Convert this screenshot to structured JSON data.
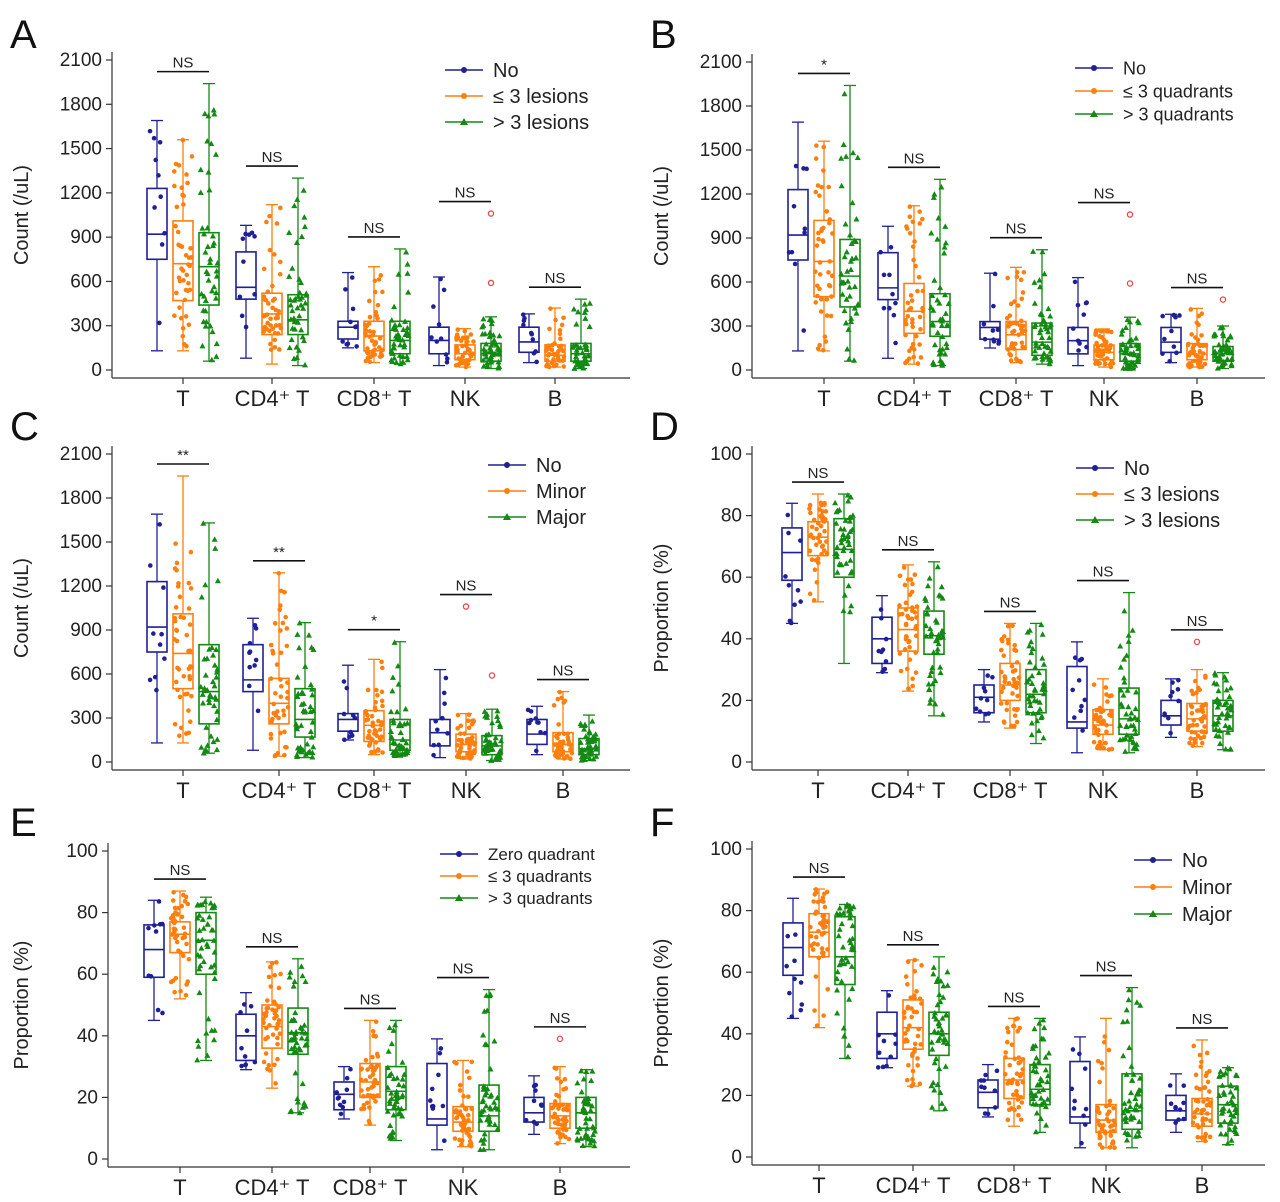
{
  "colors": {
    "no": "#1f1f96",
    "mid": "#ff7f0e",
    "high": "#138a13",
    "outlier": "#e8474f"
  },
  "chart_data": [
    {
      "panel": "A",
      "type": "box",
      "ylabel": "Count (/uL)",
      "ylim": [
        0,
        2100
      ],
      "yticks": [
        0,
        300,
        600,
        900,
        1200,
        1500,
        1800,
        2100
      ],
      "categories": [
        "T",
        "CD4⁺ T",
        "CD8⁺ T",
        "NK",
        "B"
      ],
      "legend": [
        "No",
        "≤ 3 lesions",
        "> 3 lesions"
      ],
      "significance": [
        "NS",
        "NS",
        "NS",
        "NS",
        "NS"
      ],
      "series": [
        {
          "name": "No",
          "boxes": [
            {
              "min": 130,
              "q1": 750,
              "median": 920,
              "q3": 1230,
              "max": 1690
            },
            {
              "min": 80,
              "q1": 480,
              "median": 560,
              "q3": 800,
              "max": 980
            },
            {
              "min": 150,
              "q1": 210,
              "median": 290,
              "q3": 330,
              "max": 660
            },
            {
              "min": 30,
              "q1": 110,
              "median": 200,
              "q3": 290,
              "max": 630
            },
            {
              "min": 50,
              "q1": 120,
              "median": 190,
              "q3": 290,
              "max": 380
            }
          ]
        },
        {
          "name": "≤ 3 lesions",
          "boxes": [
            {
              "min": 130,
              "q1": 470,
              "median": 720,
              "q3": 1010,
              "max": 1560
            },
            {
              "min": 40,
              "q1": 240,
              "median": 380,
              "q3": 520,
              "max": 1120
            },
            {
              "min": 50,
              "q1": 130,
              "median": 230,
              "q3": 330,
              "max": 700
            },
            {
              "min": 20,
              "q1": 70,
              "median": 110,
              "q3": 170,
              "max": 280
            },
            {
              "min": 20,
              "q1": 60,
              "median": 100,
              "q3": 170,
              "max": 420
            }
          ]
        },
        {
          "name": "> 3 lesions",
          "boxes": [
            {
              "min": 60,
              "q1": 440,
              "median": 700,
              "q3": 930,
              "max": 1940
            },
            {
              "min": 30,
              "q1": 240,
              "median": 340,
              "q3": 510,
              "max": 1300
            },
            {
              "min": 40,
              "q1": 110,
              "median": 200,
              "q3": 330,
              "max": 820
            },
            {
              "min": 10,
              "q1": 60,
              "median": 110,
              "q3": 180,
              "max": 360,
              "outliers": [
                590,
                1060
              ]
            },
            {
              "min": 10,
              "q1": 60,
              "median": 110,
              "q3": 180,
              "max": 480
            }
          ]
        }
      ]
    },
    {
      "panel": "B",
      "type": "box",
      "ylabel": "Count (/uL)",
      "ylim": [
        0,
        2100
      ],
      "yticks": [
        0,
        300,
        600,
        900,
        1200,
        1500,
        1800,
        2100
      ],
      "categories": [
        "T",
        "CD4⁺ T",
        "CD8⁺ T",
        "NK",
        "B"
      ],
      "legend": [
        "No",
        "≤ 3 quadrants",
        "> 3 quadrants"
      ],
      "significance": [
        "*",
        "NS",
        "NS",
        "NS",
        "NS"
      ],
      "series": [
        {
          "name": "No",
          "boxes": [
            {
              "min": 130,
              "q1": 750,
              "median": 920,
              "q3": 1230,
              "max": 1690
            },
            {
              "min": 80,
              "q1": 480,
              "median": 560,
              "q3": 800,
              "max": 980
            },
            {
              "min": 150,
              "q1": 210,
              "median": 290,
              "q3": 330,
              "max": 660
            },
            {
              "min": 30,
              "q1": 110,
              "median": 200,
              "q3": 290,
              "max": 630
            },
            {
              "min": 50,
              "q1": 120,
              "median": 190,
              "q3": 290,
              "max": 380
            }
          ]
        },
        {
          "name": "≤ 3 quadrants",
          "boxes": [
            {
              "min": 130,
              "q1": 500,
              "median": 740,
              "q3": 1020,
              "max": 1560
            },
            {
              "min": 40,
              "q1": 250,
              "median": 400,
              "q3": 590,
              "max": 1120
            },
            {
              "min": 50,
              "q1": 140,
              "median": 240,
              "q3": 330,
              "max": 700
            },
            {
              "min": 20,
              "q1": 70,
              "median": 120,
              "q3": 170,
              "max": 280
            },
            {
              "min": 20,
              "q1": 70,
              "median": 110,
              "q3": 180,
              "max": 420
            }
          ]
        },
        {
          "name": "> 3 quadrants",
          "boxes": [
            {
              "min": 60,
              "q1": 430,
              "median": 640,
              "q3": 890,
              "max": 1940
            },
            {
              "min": 30,
              "q1": 230,
              "median": 330,
              "q3": 520,
              "max": 1300
            },
            {
              "min": 40,
              "q1": 100,
              "median": 190,
              "q3": 320,
              "max": 820
            },
            {
              "min": 10,
              "q1": 60,
              "median": 110,
              "q3": 180,
              "max": 360,
              "outliers": [
                590,
                1060
              ]
            },
            {
              "min": 10,
              "q1": 60,
              "median": 110,
              "q3": 160,
              "max": 300,
              "outliers": [
                480
              ]
            }
          ]
        }
      ]
    },
    {
      "panel": "C",
      "type": "box",
      "ylabel": "Count (/uL)",
      "ylim": [
        0,
        2100
      ],
      "yticks": [
        0,
        300,
        600,
        900,
        1200,
        1500,
        1800,
        2100
      ],
      "categories": [
        "T",
        "CD4⁺ T",
        "CD8⁺ T",
        "NK",
        "B"
      ],
      "legend": [
        "No",
        "Minor",
        "Major"
      ],
      "significance": [
        "**",
        "**",
        "*",
        "NS",
        "NS"
      ],
      "series": [
        {
          "name": "No",
          "boxes": [
            {
              "min": 130,
              "q1": 750,
              "median": 920,
              "q3": 1230,
              "max": 1690
            },
            {
              "min": 80,
              "q1": 480,
              "median": 560,
              "q3": 800,
              "max": 980
            },
            {
              "min": 150,
              "q1": 210,
              "median": 290,
              "q3": 330,
              "max": 660
            },
            {
              "min": 30,
              "q1": 110,
              "median": 200,
              "q3": 290,
              "max": 630
            },
            {
              "min": 50,
              "q1": 120,
              "median": 190,
              "q3": 290,
              "max": 380
            }
          ]
        },
        {
          "name": "Minor",
          "boxes": [
            {
              "min": 130,
              "q1": 500,
              "median": 740,
              "q3": 1010,
              "max": 1950
            },
            {
              "min": 40,
              "q1": 260,
              "median": 400,
              "q3": 570,
              "max": 1290
            },
            {
              "min": 50,
              "q1": 140,
              "median": 250,
              "q3": 350,
              "max": 700
            },
            {
              "min": 20,
              "q1": 70,
              "median": 120,
              "q3": 190,
              "max": 330,
              "outliers": [
                1060
              ]
            },
            {
              "min": 20,
              "q1": 70,
              "median": 120,
              "q3": 200,
              "max": 480
            }
          ]
        },
        {
          "name": "Major",
          "boxes": [
            {
              "min": 60,
              "q1": 260,
              "median": 480,
              "q3": 800,
              "max": 1630
            },
            {
              "min": 30,
              "q1": 170,
              "median": 290,
              "q3": 500,
              "max": 950
            },
            {
              "min": 40,
              "q1": 80,
              "median": 150,
              "q3": 290,
              "max": 820
            },
            {
              "min": 10,
              "q1": 50,
              "median": 110,
              "q3": 180,
              "max": 360,
              "outliers": [
                590
              ]
            },
            {
              "min": 10,
              "q1": 50,
              "median": 90,
              "q3": 160,
              "max": 320
            }
          ]
        }
      ]
    },
    {
      "panel": "D",
      "type": "box",
      "ylabel": "Proportion (%)",
      "ylim": [
        0,
        100
      ],
      "yticks": [
        0,
        20,
        40,
        60,
        80,
        100
      ],
      "categories": [
        "T",
        "CD4⁺ T",
        "CD8⁺ T",
        "NK",
        "B"
      ],
      "legend": [
        "No",
        "≤ 3 lesions",
        "> 3 lesions"
      ],
      "significance": [
        "NS",
        "NS",
        "NS",
        "NS",
        "NS"
      ],
      "series": [
        {
          "name": "No",
          "boxes": [
            {
              "min": 45,
              "q1": 59,
              "median": 68,
              "q3": 76,
              "max": 84
            },
            {
              "min": 29,
              "q1": 32,
              "median": 40,
              "q3": 47,
              "max": 54
            },
            {
              "min": 13,
              "q1": 16,
              "median": 21,
              "q3": 25,
              "max": 30
            },
            {
              "min": 3,
              "q1": 11,
              "median": 13,
              "q3": 31,
              "max": 39
            },
            {
              "min": 8,
              "q1": 12,
              "median": 15,
              "q3": 20,
              "max": 27
            }
          ]
        },
        {
          "name": "≤ 3 lesions",
          "boxes": [
            {
              "min": 52,
              "q1": 67,
              "median": 73,
              "q3": 78,
              "max": 87
            },
            {
              "min": 23,
              "q1": 36,
              "median": 43,
              "q3": 50,
              "max": 64
            },
            {
              "min": 11,
              "q1": 20,
              "median": 25,
              "q3": 32,
              "max": 45
            },
            {
              "min": 4,
              "q1": 9,
              "median": 12,
              "q3": 17,
              "max": 27
            },
            {
              "min": 5,
              "q1": 10,
              "median": 14,
              "q3": 19,
              "max": 30,
              "outliers": [
                39
              ]
            }
          ]
        },
        {
          "name": "> 3 lesions",
          "boxes": [
            {
              "min": 32,
              "q1": 60,
              "median": 69,
              "q3": 79,
              "max": 87
            },
            {
              "min": 15,
              "q1": 35,
              "median": 41,
              "q3": 49,
              "max": 65
            },
            {
              "min": 6,
              "q1": 16,
              "median": 22,
              "q3": 30,
              "max": 45
            },
            {
              "min": 3,
              "q1": 9,
              "median": 14,
              "q3": 24,
              "max": 55
            },
            {
              "min": 4,
              "q1": 10,
              "median": 15,
              "q3": 20,
              "max": 29
            }
          ]
        }
      ]
    },
    {
      "panel": "E",
      "type": "box",
      "ylabel": "Proportion (%)",
      "ylim": [
        0,
        100
      ],
      "yticks": [
        0,
        20,
        40,
        60,
        80,
        100
      ],
      "categories": [
        "T",
        "CD4⁺ T",
        "CD8⁺ T",
        "NK",
        "B"
      ],
      "legend": [
        "Zero quadrant",
        "≤ 3 quadrants",
        "> 3 quadrants"
      ],
      "significance": [
        "NS",
        "NS",
        "NS",
        "NS",
        "NS"
      ],
      "series": [
        {
          "name": "Zero quadrant",
          "boxes": [
            {
              "min": 45,
              "q1": 59,
              "median": 68,
              "q3": 76,
              "max": 84
            },
            {
              "min": 29,
              "q1": 32,
              "median": 40,
              "q3": 47,
              "max": 54
            },
            {
              "min": 13,
              "q1": 16,
              "median": 21,
              "q3": 25,
              "max": 30
            },
            {
              "min": 3,
              "q1": 11,
              "median": 13,
              "q3": 31,
              "max": 39
            },
            {
              "min": 8,
              "q1": 12,
              "median": 15,
              "q3": 20,
              "max": 27
            }
          ]
        },
        {
          "name": "≤ 3 quadrants",
          "boxes": [
            {
              "min": 52,
              "q1": 67,
              "median": 73,
              "q3": 77,
              "max": 87
            },
            {
              "min": 23,
              "q1": 36,
              "median": 43,
              "q3": 50,
              "max": 64
            },
            {
              "min": 11,
              "q1": 20,
              "median": 25,
              "q3": 31,
              "max": 45
            },
            {
              "min": 4,
              "q1": 9,
              "median": 12,
              "q3": 17,
              "max": 32
            },
            {
              "min": 5,
              "q1": 10,
              "median": 14,
              "q3": 18,
              "max": 30,
              "outliers": [
                39
              ]
            }
          ]
        },
        {
          "name": "> 3 quadrants",
          "boxes": [
            {
              "min": 32,
              "q1": 60,
              "median": 71,
              "q3": 80,
              "max": 85
            },
            {
              "min": 15,
              "q1": 34,
              "median": 41,
              "q3": 49,
              "max": 65
            },
            {
              "min": 6,
              "q1": 16,
              "median": 22,
              "q3": 30,
              "max": 45
            },
            {
              "min": 3,
              "q1": 9,
              "median": 14,
              "q3": 24,
              "max": 55
            },
            {
              "min": 4,
              "q1": 10,
              "median": 15,
              "q3": 20,
              "max": 29
            }
          ]
        }
      ]
    },
    {
      "panel": "F",
      "type": "box",
      "ylabel": "Proportion (%)",
      "ylim": [
        0,
        100
      ],
      "yticks": [
        0,
        20,
        40,
        60,
        80,
        100
      ],
      "categories": [
        "T",
        "CD4⁺ T",
        "CD8⁺ T",
        "NK",
        "B"
      ],
      "legend": [
        "No",
        "Minor",
        "Major"
      ],
      "significance": [
        "NS",
        "NS",
        "NS",
        "NS",
        "NS"
      ],
      "series": [
        {
          "name": "No",
          "boxes": [
            {
              "min": 45,
              "q1": 59,
              "median": 68,
              "q3": 76,
              "max": 84
            },
            {
              "min": 29,
              "q1": 32,
              "median": 40,
              "q3": 47,
              "max": 54
            },
            {
              "min": 13,
              "q1": 16,
              "median": 21,
              "q3": 25,
              "max": 30
            },
            {
              "min": 3,
              "q1": 11,
              "median": 13,
              "q3": 31,
              "max": 39
            },
            {
              "min": 8,
              "q1": 12,
              "median": 15,
              "q3": 20,
              "max": 27
            }
          ]
        },
        {
          "name": "Minor",
          "boxes": [
            {
              "min": 42,
              "q1": 65,
              "median": 73,
              "q3": 79,
              "max": 87
            },
            {
              "min": 23,
              "q1": 35,
              "median": 42,
              "q3": 51,
              "max": 64
            },
            {
              "min": 10,
              "q1": 19,
              "median": 25,
              "q3": 32,
              "max": 45
            },
            {
              "min": 3,
              "q1": 8,
              "median": 12,
              "q3": 17,
              "max": 45
            },
            {
              "min": 5,
              "q1": 10,
              "median": 14,
              "q3": 19,
              "max": 38
            }
          ]
        },
        {
          "name": "Major",
          "boxes": [
            {
              "min": 32,
              "q1": 56,
              "median": 65,
              "q3": 78,
              "max": 82
            },
            {
              "min": 15,
              "q1": 33,
              "median": 40,
              "q3": 47,
              "max": 65
            },
            {
              "min": 8,
              "q1": 17,
              "median": 22,
              "q3": 30,
              "max": 45
            },
            {
              "min": 3,
              "q1": 9,
              "median": 15,
              "q3": 27,
              "max": 55
            },
            {
              "min": 4,
              "q1": 11,
              "median": 17,
              "q3": 23,
              "max": 29
            }
          ]
        }
      ]
    }
  ]
}
